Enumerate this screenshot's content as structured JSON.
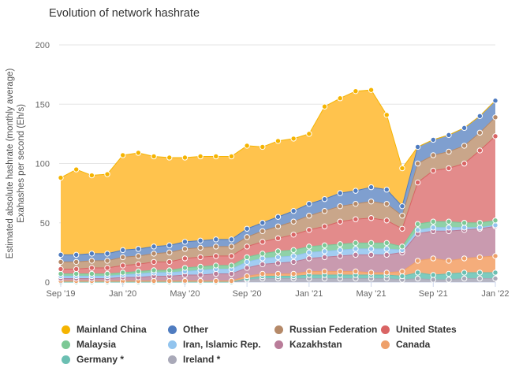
{
  "chart_data": {
    "type": "area",
    "title": "Evolution of network hashrate",
    "ylabel": [
      "Estimated absolute hashrate (monthly average)",
      "Exahashes per second (Eh/s)"
    ],
    "xlabel": "",
    "ylim": [
      0,
      200
    ],
    "yticks": [
      0,
      50,
      100,
      150,
      200
    ],
    "xticks": [
      {
        "label": "Sep '19",
        "index": 0
      },
      {
        "label": "Jan '20",
        "index": 4
      },
      {
        "label": "May '20",
        "index": 8
      },
      {
        "label": "Sep '20",
        "index": 12
      },
      {
        "label": "Jan '21",
        "index": 16
      },
      {
        "label": "May '21",
        "index": 20
      },
      {
        "label": "Sep '21",
        "index": 24
      },
      {
        "label": "Jan '22",
        "index": 28
      }
    ],
    "stacked": true,
    "categories": [
      "2019-09",
      "2019-10",
      "2019-11",
      "2019-12",
      "2020-01",
      "2020-02",
      "2020-03",
      "2020-04",
      "2020-05",
      "2020-06",
      "2020-07",
      "2020-08",
      "2020-09",
      "2020-10",
      "2020-11",
      "2020-12",
      "2021-01",
      "2021-02",
      "2021-03",
      "2021-04",
      "2021-05",
      "2021-06",
      "2021-07",
      "2021-08",
      "2021-09",
      "2021-10",
      "2021-11",
      "2021-12",
      "2022-01"
    ],
    "series": [
      {
        "name": "Ireland *",
        "color": "#b5b5c3",
        "values": [
          0,
          0,
          0,
          0,
          0,
          0,
          0,
          0,
          0,
          0,
          0,
          0,
          2,
          3,
          3,
          3,
          3,
          3,
          3,
          3,
          3,
          3,
          2,
          3,
          2,
          2,
          3,
          3,
          3
        ]
      },
      {
        "name": "Germany *",
        "color": "#7ecbbf",
        "values": [
          0,
          0,
          0,
          0,
          0,
          0,
          0,
          0,
          0,
          0,
          0,
          0,
          1,
          2,
          2,
          2,
          3,
          3,
          3,
          3,
          3,
          3,
          3,
          5,
          4,
          5,
          5,
          5,
          5
        ]
      },
      {
        "name": "Canada",
        "color": "#f5ad7b",
        "values": [
          1,
          1,
          1,
          1,
          1,
          1,
          1,
          1,
          1,
          1,
          1,
          1,
          2,
          2,
          2,
          2,
          3,
          3,
          3,
          3,
          2,
          2,
          4,
          10,
          14,
          11,
          12,
          13,
          14
        ]
      },
      {
        "name": "Kazakhstan",
        "color": "#c99aaf",
        "values": [
          2,
          2,
          2,
          2,
          3,
          3,
          4,
          4,
          5,
          5,
          6,
          6,
          7,
          8,
          9,
          10,
          11,
          12,
          13,
          14,
          15,
          15,
          16,
          23,
          23,
          25,
          24,
          24,
          25
        ]
      },
      {
        "name": "Iran, Islamic Rep.",
        "color": "#a2cdf2",
        "values": [
          2,
          2,
          2,
          2,
          2,
          3,
          3,
          3,
          3,
          4,
          4,
          4,
          5,
          5,
          5,
          5,
          5,
          5,
          5,
          5,
          5,
          5,
          2,
          3,
          3,
          3,
          2,
          1,
          1
        ]
      },
      {
        "name": "Malaysia",
        "color": "#8fd1a8",
        "values": [
          2,
          2,
          2,
          2,
          2,
          2,
          2,
          2,
          3,
          3,
          3,
          3,
          4,
          4,
          5,
          5,
          5,
          5,
          5,
          5,
          5,
          5,
          3,
          5,
          5,
          5,
          4,
          4,
          4
        ]
      },
      {
        "name": "United States",
        "color": "#e38b8b",
        "values": [
          4,
          4,
          5,
          5,
          6,
          6,
          7,
          7,
          8,
          8,
          8,
          8,
          9,
          10,
          11,
          13,
          14,
          16,
          19,
          20,
          21,
          19,
          15,
          35,
          43,
          45,
          50,
          61,
          71
        ]
      },
      {
        "name": "Russian Federation",
        "color": "#c9a68a",
        "values": [
          6,
          6,
          6,
          6,
          7,
          7,
          7,
          8,
          8,
          8,
          8,
          8,
          8,
          9,
          10,
          11,
          12,
          13,
          13,
          13,
          14,
          14,
          11,
          16,
          13,
          14,
          15,
          15,
          16
        ]
      },
      {
        "name": "Other",
        "color": "#7f9fcf",
        "values": [
          6,
          6,
          6,
          6,
          6,
          6,
          6,
          6,
          6,
          6,
          6,
          6,
          7,
          7,
          8,
          9,
          10,
          10,
          11,
          11,
          12,
          12,
          8,
          14,
          13,
          14,
          15,
          14,
          14
        ]
      },
      {
        "name": "Mainland China",
        "color": "#ffc34d",
        "values": [
          65,
          72,
          66,
          67,
          80,
          81,
          76,
          74,
          71,
          71,
          70,
          70,
          70,
          64,
          64,
          61,
          59,
          78,
          80,
          84,
          82,
          63,
          32,
          0,
          0,
          0,
          0,
          0,
          0
        ]
      }
    ]
  },
  "legend": {
    "items": [
      {
        "label": "Mainland China",
        "color": "#f5b400"
      },
      {
        "label": "Other",
        "color": "#4f7cc0"
      },
      {
        "label": "Russian Federation",
        "color": "#b58968"
      },
      {
        "label": "United States",
        "color": "#d96464"
      },
      {
        "label": "Malaysia",
        "color": "#7cc895"
      },
      {
        "label": "Iran, Islamic Rep.",
        "color": "#92c4ee"
      },
      {
        "label": "Kazakhstan",
        "color": "#b97c99"
      },
      {
        "label": "Canada",
        "color": "#eea06a"
      },
      {
        "label": "Germany *",
        "color": "#6bbfb2"
      },
      {
        "label": "Ireland *",
        "color": "#a9a9b8"
      }
    ]
  }
}
